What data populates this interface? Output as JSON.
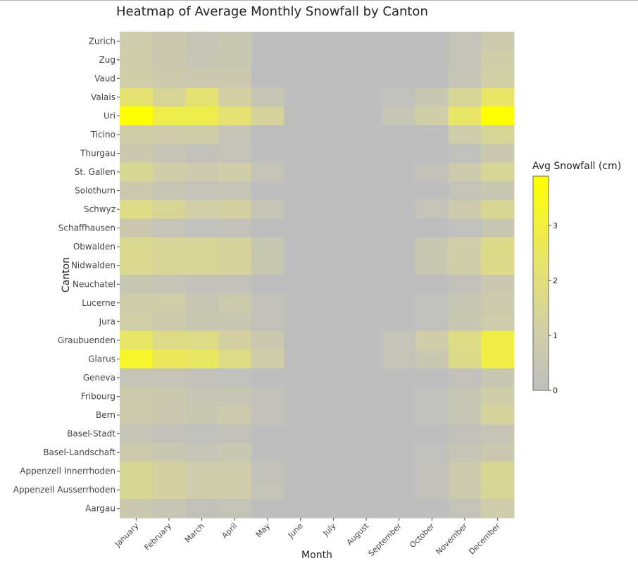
{
  "chart_data": {
    "type": "heatmap",
    "title": "Heatmap of Average Monthly Snowfall by Canton",
    "xlabel": "Month",
    "ylabel": "Canton",
    "x": [
      "January",
      "February",
      "March",
      "April",
      "May",
      "June",
      "July",
      "August",
      "September",
      "October",
      "November",
      "December"
    ],
    "y": [
      "Zurich",
      "Zug",
      "Vaud",
      "Valais",
      "Uri",
      "Ticino",
      "Thurgau",
      "St. Gallen",
      "Solothurn",
      "Schwyz",
      "Schaffhausen",
      "Obwalden",
      "Nidwalden",
      "Neuchatel",
      "Lucerne",
      "Jura",
      "Graubuenden",
      "Glarus",
      "Geneva",
      "Fribourg",
      "Bern",
      "Basel-Stadt",
      "Basel-Landschaft",
      "Appenzell Innerrhoden",
      "Appenzell Ausserrhoden",
      "Aargau"
    ],
    "values": [
      [
        0.9,
        0.7,
        0.4,
        0.6,
        0,
        0,
        0,
        0,
        0,
        0,
        0.3,
        0.8
      ],
      [
        0.9,
        0.7,
        0.5,
        0.6,
        0,
        0,
        0,
        0,
        0,
        0,
        0.3,
        1.0
      ],
      [
        1.0,
        0.8,
        0.7,
        0.7,
        0,
        0,
        0,
        0,
        0,
        0,
        0.4,
        1.1
      ],
      [
        2.2,
        1.4,
        2.2,
        1.2,
        0.5,
        0,
        0,
        0,
        0.1,
        0.6,
        1.4,
        2.4
      ],
      [
        3.9,
        2.8,
        2.8,
        2.2,
        1.3,
        0,
        0,
        0,
        0.5,
        1.0,
        2.4,
        3.9
      ],
      [
        1.0,
        0.9,
        1.0,
        0.4,
        0,
        0,
        0,
        0,
        0,
        0,
        0.9,
        1.4
      ],
      [
        0.7,
        0.4,
        0.2,
        0.3,
        0,
        0,
        0,
        0,
        0,
        0,
        0.1,
        0.7
      ],
      [
        1.5,
        1.0,
        0.8,
        1.0,
        0.3,
        0,
        0,
        0,
        0,
        0.2,
        0.8,
        1.4
      ],
      [
        0.7,
        0.5,
        0.3,
        0.4,
        0,
        0,
        0,
        0,
        0,
        0,
        0.3,
        0.6
      ],
      [
        1.8,
        1.4,
        1.1,
        1.2,
        0.4,
        0,
        0,
        0,
        0,
        0.3,
        0.8,
        1.5
      ],
      [
        0.7,
        0.3,
        0.1,
        0.2,
        0,
        0,
        0,
        0,
        0,
        0,
        0.1,
        0.6
      ],
      [
        1.6,
        1.4,
        1.4,
        1.3,
        0.6,
        0,
        0,
        0,
        0,
        0.6,
        1.0,
        1.7
      ],
      [
        1.6,
        1.4,
        1.4,
        1.3,
        0.6,
        0,
        0,
        0,
        0,
        0.6,
        1.0,
        1.7
      ],
      [
        0.6,
        0.4,
        0.2,
        0.2,
        0,
        0,
        0,
        0,
        0,
        0,
        0.2,
        0.7
      ],
      [
        0.9,
        1.0,
        0.5,
        0.8,
        0.2,
        0,
        0,
        0,
        0,
        0.1,
        0.5,
        0.8
      ],
      [
        1.1,
        0.8,
        0.6,
        0.6,
        0.2,
        0,
        0,
        0,
        0,
        0.1,
        0.6,
        0.9
      ],
      [
        2.4,
        1.8,
        1.8,
        1.2,
        0.7,
        0,
        0,
        0,
        0.3,
        1.0,
        1.8,
        2.9
      ],
      [
        3.3,
        2.6,
        2.5,
        1.8,
        1.0,
        0,
        0,
        0,
        0.3,
        0.6,
        1.7,
        2.9
      ],
      [
        0.3,
        0.3,
        0.2,
        0.1,
        0,
        0,
        0,
        0,
        0,
        0,
        0.2,
        0.6
      ],
      [
        0.8,
        0.7,
        0.5,
        0.5,
        0.2,
        0,
        0,
        0,
        0,
        0.1,
        0.5,
        1.0
      ],
      [
        0.8,
        0.7,
        0.6,
        0.8,
        0.2,
        0,
        0,
        0,
        0,
        0.1,
        0.5,
        1.3
      ],
      [
        0.4,
        0.2,
        0.1,
        0.2,
        0,
        0,
        0,
        0,
        0,
        0,
        0.2,
        0.4
      ],
      [
        0.8,
        0.6,
        0.4,
        0.6,
        0,
        0,
        0,
        0,
        0,
        0.1,
        0.4,
        0.7
      ],
      [
        1.5,
        1.2,
        0.9,
        0.9,
        0.2,
        0,
        0,
        0,
        0,
        0.2,
        0.8,
        1.5
      ],
      [
        1.5,
        1.2,
        0.9,
        0.9,
        0.3,
        0,
        0,
        0,
        0,
        0.2,
        0.8,
        1.4
      ],
      [
        0.7,
        0.5,
        0.2,
        0.3,
        0,
        0,
        0,
        0,
        0,
        0,
        0.3,
        0.9
      ]
    ],
    "colorbar": {
      "title": "Avg Snowfall (cm)",
      "ticks": [
        0,
        1,
        2,
        3
      ],
      "range": [
        0,
        3.9
      ],
      "low_color": "#bebebe",
      "high_color": "#ffff00"
    },
    "grid": true,
    "legend_position": "right"
  }
}
